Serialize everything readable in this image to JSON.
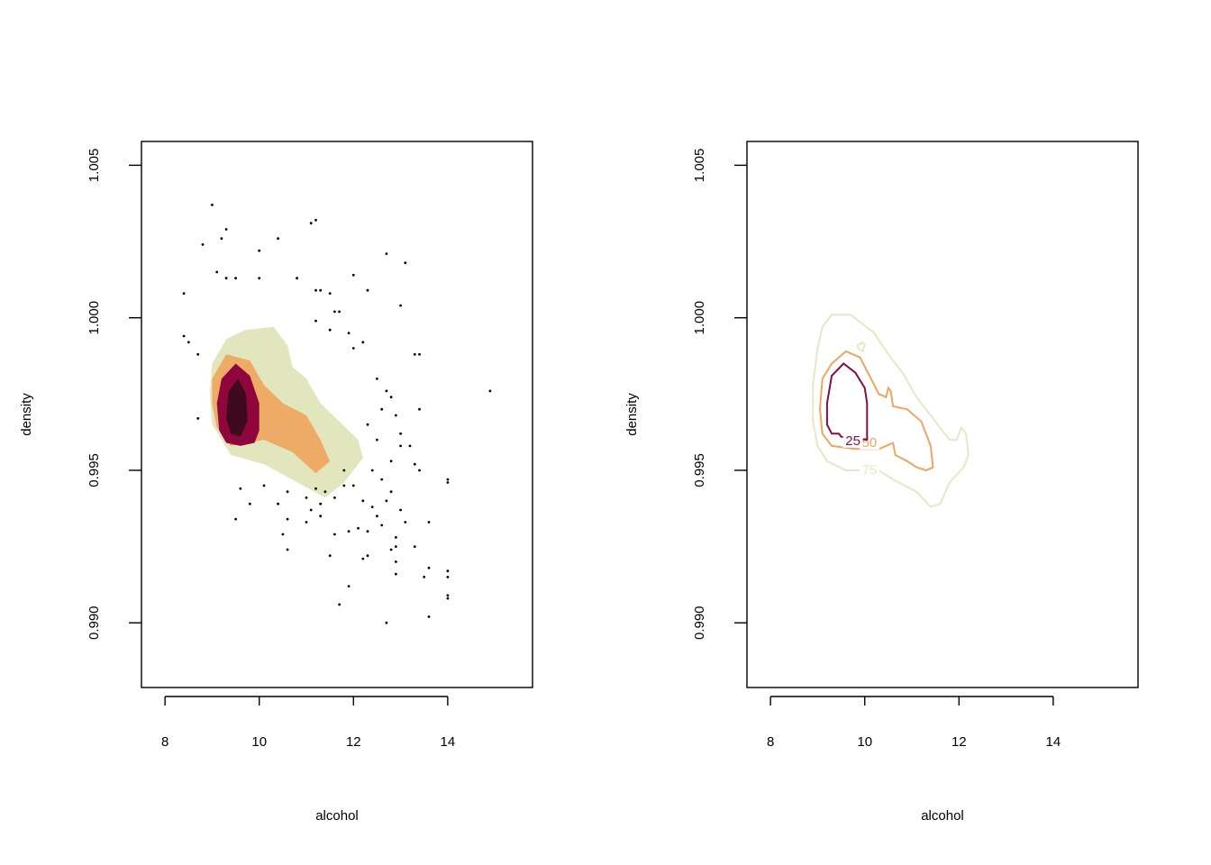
{
  "chart_data": [
    {
      "type": "scatter",
      "title": "",
      "xlabel": "alcohol",
      "ylabel": "density",
      "xlim": [
        7.5,
        15.8
      ],
      "ylim": [
        0.98788,
        1.00578
      ],
      "xticks": [
        8,
        10,
        12,
        14
      ],
      "yticks": [
        0.99,
        0.995,
        1.0,
        1.005
      ],
      "xtick_labels": [
        "8",
        "10",
        "12",
        "14"
      ],
      "ytick_labels": [
        "0.990",
        "0.995",
        "1.000",
        "1.005"
      ],
      "grid": false,
      "hdr_regions": [
        {
          "level": 75,
          "color": "#E2E6BD",
          "polygon": [
            [
              9.0,
              0.9985
            ],
            [
              9.3,
              0.9993
            ],
            [
              9.7,
              0.9996
            ],
            [
              10.3,
              0.9997
            ],
            [
              10.6,
              0.9991
            ],
            [
              10.7,
              0.9984
            ],
            [
              11.0,
              0.998
            ],
            [
              11.3,
              0.9972
            ],
            [
              11.7,
              0.9966
            ],
            [
              12.1,
              0.996
            ],
            [
              12.2,
              0.9954
            ],
            [
              11.8,
              0.9946
            ],
            [
              11.4,
              0.9941
            ],
            [
              10.7,
              0.9947
            ],
            [
              10.1,
              0.9952
            ],
            [
              9.4,
              0.9955
            ],
            [
              9.0,
              0.9965
            ],
            [
              8.95,
              0.9975
            ]
          ]
        },
        {
          "level": 50,
          "color": "#EEAB65",
          "polygon": [
            [
              9.0,
              0.998
            ],
            [
              9.3,
              0.9988
            ],
            [
              9.8,
              0.9986
            ],
            [
              10.1,
              0.9978
            ],
            [
              10.5,
              0.9972
            ],
            [
              11.0,
              0.9968
            ],
            [
              11.3,
              0.996
            ],
            [
              11.5,
              0.9953
            ],
            [
              11.2,
              0.9949
            ],
            [
              10.7,
              0.9956
            ],
            [
              10.1,
              0.996
            ],
            [
              9.4,
              0.9958
            ],
            [
              9.1,
              0.9964
            ],
            [
              9.0,
              0.9972
            ]
          ]
        },
        {
          "level": 25,
          "color": "#8E063B",
          "polygon": [
            [
              9.1,
              0.9972
            ],
            [
              9.2,
              0.998
            ],
            [
              9.5,
              0.9985
            ],
            [
              9.8,
              0.9981
            ],
            [
              10.0,
              0.9972
            ],
            [
              10.0,
              0.9963
            ],
            [
              9.9,
              0.9959
            ],
            [
              9.6,
              0.9958
            ],
            [
              9.3,
              0.9959
            ],
            [
              9.15,
              0.9963
            ]
          ]
        }
      ],
      "dark_core": {
        "color": "#3D0A1E",
        "polygon": [
          [
            9.3,
            0.9967
          ],
          [
            9.35,
            0.9976
          ],
          [
            9.55,
            0.998
          ],
          [
            9.72,
            0.9975
          ],
          [
            9.75,
            0.9966
          ],
          [
            9.6,
            0.9961
          ],
          [
            9.4,
            0.9962
          ]
        ]
      },
      "points": [
        [
          9.0,
          1.0037
        ],
        [
          9.3,
          1.0029
        ],
        [
          9.2,
          1.0026
        ],
        [
          8.8,
          1.0024
        ],
        [
          10.4,
          1.0026
        ],
        [
          10.0,
          1.0022
        ],
        [
          11.1,
          1.0031
        ],
        [
          11.2,
          1.0032
        ],
        [
          12.7,
          1.0021
        ],
        [
          13.1,
          1.0018
        ],
        [
          8.4,
          1.0008
        ],
        [
          9.1,
          1.0015
        ],
        [
          9.3,
          1.0013
        ],
        [
          9.5,
          1.0013
        ],
        [
          10.0,
          1.0013
        ],
        [
          10.8,
          1.0013
        ],
        [
          11.2,
          1.0009
        ],
        [
          11.3,
          1.0009
        ],
        [
          11.5,
          1.0008
        ],
        [
          12.0,
          1.0014
        ],
        [
          12.3,
          1.0009
        ],
        [
          13.0,
          1.0004
        ],
        [
          8.4,
          0.9994
        ],
        [
          8.5,
          0.9992
        ],
        [
          8.7,
          0.9988
        ],
        [
          8.7,
          0.9967
        ],
        [
          11.6,
          1.0002
        ],
        [
          11.7,
          1.0002
        ],
        [
          11.2,
          0.9999
        ],
        [
          11.5,
          0.9996
        ],
        [
          11.9,
          0.9995
        ],
        [
          12.2,
          0.9992
        ],
        [
          12.0,
          0.999
        ],
        [
          12.5,
          0.998
        ],
        [
          12.7,
          0.9976
        ],
        [
          12.8,
          0.9974
        ],
        [
          13.3,
          0.9988
        ],
        [
          13.4,
          0.9988
        ],
        [
          13.4,
          0.997
        ],
        [
          14.9,
          0.9976
        ],
        [
          12.6,
          0.997
        ],
        [
          12.9,
          0.9968
        ],
        [
          13.0,
          0.9962
        ],
        [
          13.0,
          0.9958
        ],
        [
          12.3,
          0.9965
        ],
        [
          12.5,
          0.996
        ],
        [
          13.2,
          0.9958
        ],
        [
          13.3,
          0.9952
        ],
        [
          13.4,
          0.995
        ],
        [
          14.0,
          0.9947
        ],
        [
          14.0,
          0.9946
        ],
        [
          13.6,
          0.9933
        ],
        [
          13.3,
          0.9925
        ],
        [
          13.6,
          0.9918
        ],
        [
          13.5,
          0.9915
        ],
        [
          14.0,
          0.9917
        ],
        [
          14.0,
          0.9915
        ],
        [
          14.0,
          0.9909
        ],
        [
          14.0,
          0.9908
        ],
        [
          13.6,
          0.9902
        ],
        [
          12.7,
          0.99
        ],
        [
          12.9,
          0.9916
        ],
        [
          12.9,
          0.992
        ],
        [
          12.8,
          0.9924
        ],
        [
          12.9,
          0.9925
        ],
        [
          12.2,
          0.9921
        ],
        [
          12.3,
          0.9922
        ],
        [
          11.9,
          0.9912
        ],
        [
          11.7,
          0.9906
        ],
        [
          11.5,
          0.9922
        ],
        [
          11.6,
          0.9929
        ],
        [
          11.9,
          0.993
        ],
        [
          12.1,
          0.9931
        ],
        [
          12.3,
          0.993
        ],
        [
          12.4,
          0.9938
        ],
        [
          12.5,
          0.9935
        ],
        [
          12.6,
          0.9932
        ],
        [
          12.7,
          0.994
        ],
        [
          12.8,
          0.9943
        ],
        [
          13.0,
          0.9937
        ],
        [
          13.1,
          0.9933
        ],
        [
          12.9,
          0.9928
        ],
        [
          12.2,
          0.994
        ],
        [
          12.0,
          0.9945
        ],
        [
          11.8,
          0.995
        ],
        [
          12.4,
          0.995
        ],
        [
          12.6,
          0.9947
        ],
        [
          12.8,
          0.9953
        ],
        [
          10.6,
          0.9924
        ],
        [
          10.5,
          0.9929
        ],
        [
          10.6,
          0.9934
        ],
        [
          10.4,
          0.9939
        ],
        [
          10.6,
          0.9943
        ],
        [
          11.0,
          0.9933
        ],
        [
          11.1,
          0.9937
        ],
        [
          11.3,
          0.9935
        ],
        [
          9.5,
          0.9934
        ],
        [
          9.6,
          0.9944
        ],
        [
          9.8,
          0.9939
        ],
        [
          10.1,
          0.9945
        ],
        [
          11.3,
          0.9939
        ],
        [
          11.6,
          0.9941
        ],
        [
          11.8,
          0.9945
        ],
        [
          11.0,
          0.9941
        ],
        [
          11.2,
          0.9944
        ],
        [
          11.4,
          0.9943
        ]
      ]
    },
    {
      "type": "line",
      "title": "",
      "xlabel": "alcohol",
      "ylabel": "density",
      "xlim": [
        7.5,
        15.8
      ],
      "ylim": [
        0.98788,
        1.00578
      ],
      "xticks": [
        8,
        10,
        12,
        14
      ],
      "yticks": [
        0.99,
        0.995,
        1.0,
        1.005
      ],
      "xtick_labels": [
        "8",
        "10",
        "12",
        "14"
      ],
      "ytick_labels": [
        "0.990",
        "0.995",
        "1.000",
        "1.005"
      ],
      "grid": false,
      "series": [
        {
          "name": "75",
          "color": "#E8E7C5",
          "label_at": [
            10.1,
            0.99502
          ],
          "points": [
            [
              10.3,
              0.995
            ],
            [
              10.6,
              0.9947
            ],
            [
              11.1,
              0.9943
            ],
            [
              11.4,
              0.9938
            ],
            [
              11.6,
              0.9939
            ],
            [
              11.8,
              0.9946
            ],
            [
              12.1,
              0.9951
            ],
            [
              12.2,
              0.9955
            ],
            [
              12.15,
              0.9962
            ],
            [
              12.05,
              0.9964
            ],
            [
              11.95,
              0.996
            ],
            [
              11.8,
              0.996
            ],
            [
              11.5,
              0.9966
            ],
            [
              11.1,
              0.9974
            ],
            [
              10.8,
              0.9982
            ],
            [
              10.5,
              0.9988
            ],
            [
              10.2,
              0.9995
            ],
            [
              9.7,
              1.0001
            ],
            [
              9.3,
              1.0001
            ],
            [
              9.1,
              0.9997
            ],
            [
              9.0,
              0.999
            ],
            [
              8.9,
              0.9978
            ],
            [
              8.9,
              0.9966
            ],
            [
              9.0,
              0.9958
            ],
            [
              9.2,
              0.9953
            ],
            [
              9.6,
              0.995
            ],
            [
              9.9,
              0.995
            ]
          ]
        },
        {
          "name": "50",
          "color": "#EEA560",
          "label_at": [
            10.1,
            0.99592
          ],
          "points": [
            [
              10.3,
              0.9957
            ],
            [
              10.6,
              0.9959
            ],
            [
              10.65,
              0.9955
            ],
            [
              10.9,
              0.9953
            ],
            [
              11.1,
              0.9951
            ],
            [
              11.3,
              0.995
            ],
            [
              11.45,
              0.9951
            ],
            [
              11.4,
              0.9958
            ],
            [
              11.2,
              0.9966
            ],
            [
              10.9,
              0.997
            ],
            [
              10.6,
              0.9971
            ],
            [
              10.55,
              0.9976
            ],
            [
              10.5,
              0.9977
            ],
            [
              10.45,
              0.9974
            ],
            [
              10.3,
              0.9975
            ],
            [
              10.1,
              0.9981
            ],
            [
              9.9,
              0.9987
            ],
            [
              9.6,
              0.9989
            ],
            [
              9.3,
              0.9985
            ],
            [
              9.1,
              0.998
            ],
            [
              9.05,
              0.997
            ],
            [
              9.1,
              0.9962
            ],
            [
              9.3,
              0.9958
            ],
            [
              9.8,
              0.9957
            ]
          ]
        },
        {
          "name": "25",
          "color": "#820F46",
          "label_at": [
            9.75,
            0.99598
          ],
          "points": [
            [
              10.05,
              0.996
            ],
            [
              10.05,
              0.9965
            ],
            [
              10.05,
              0.9972
            ],
            [
              10.0,
              0.9977
            ],
            [
              9.8,
              0.9982
            ],
            [
              9.55,
              0.9985
            ],
            [
              9.3,
              0.9981
            ],
            [
              9.2,
              0.9972
            ],
            [
              9.2,
              0.9965
            ],
            [
              9.3,
              0.9962
            ],
            [
              9.45,
              0.9962
            ],
            [
              9.5,
              0.9961
            ]
          ]
        },
        {
          "name": "",
          "color": "#E8E7C5",
          "label_at": null,
          "points": [
            [
              9.85,
              0.9991
            ],
            [
              9.95,
              0.9992
            ],
            [
              10.0,
              0.9991
            ],
            [
              9.95,
              0.9989
            ],
            [
              9.85,
              0.999
            ]
          ]
        }
      ]
    }
  ]
}
